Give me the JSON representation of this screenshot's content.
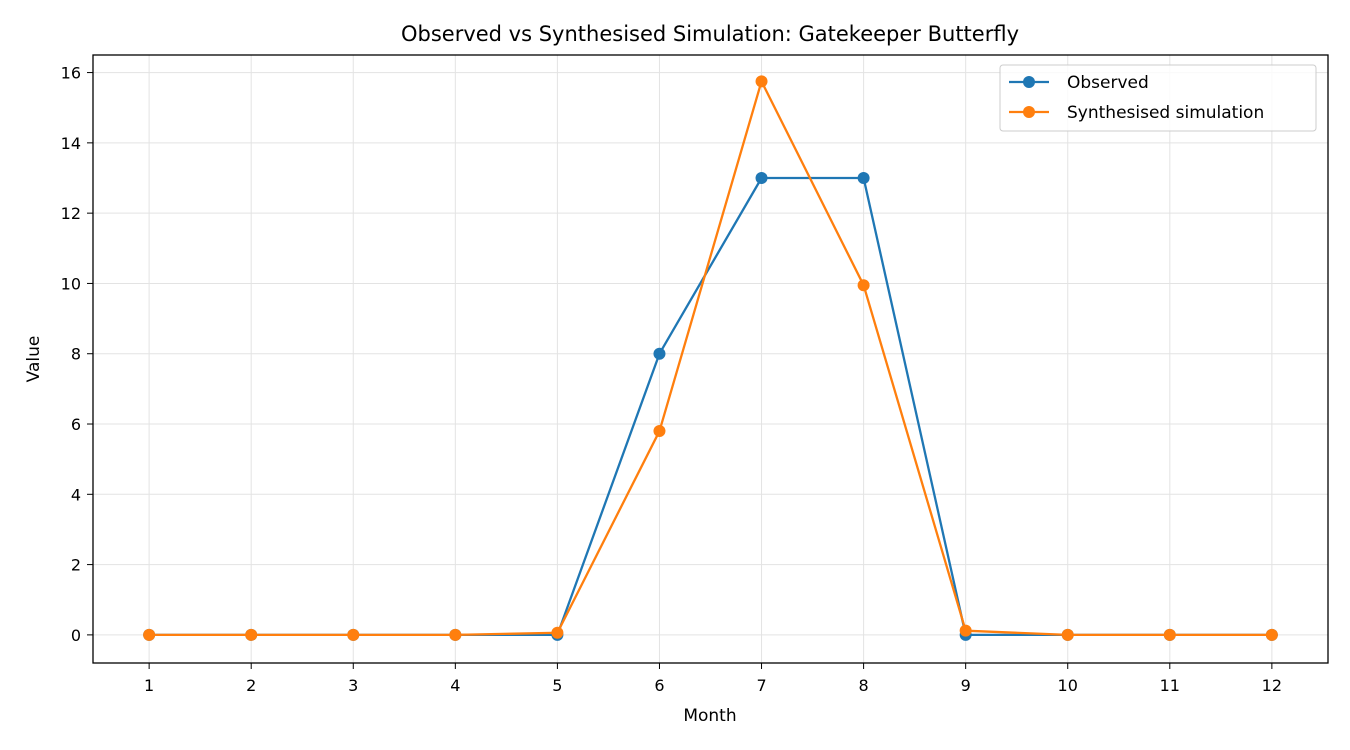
{
  "chart_data": {
    "type": "line",
    "title": "Observed vs Synthesised Simulation: Gatekeeper Butterfly",
    "xlabel": "Month",
    "ylabel": "Value",
    "x": [
      1,
      2,
      3,
      4,
      5,
      6,
      7,
      8,
      9,
      10,
      11,
      12
    ],
    "xlim": [
      0.45,
      12.55
    ],
    "ylim": [
      -0.8,
      16.5
    ],
    "yticks": [
      0,
      2,
      4,
      6,
      8,
      10,
      12,
      14,
      16
    ],
    "grid": true,
    "legend_position": "top-right",
    "series": [
      {
        "name": "Observed",
        "color": "#1f77b4",
        "marker": "circle",
        "values": [
          0,
          0,
          0,
          0,
          0,
          8,
          13,
          13,
          0,
          0,
          0,
          0
        ]
      },
      {
        "name": "Synthesised simulation",
        "color": "#ff7f0e",
        "marker": "circle",
        "values": [
          0,
          0,
          0,
          0,
          0.06,
          5.8,
          15.75,
          9.95,
          0.12,
          0,
          0,
          0
        ]
      }
    ]
  }
}
